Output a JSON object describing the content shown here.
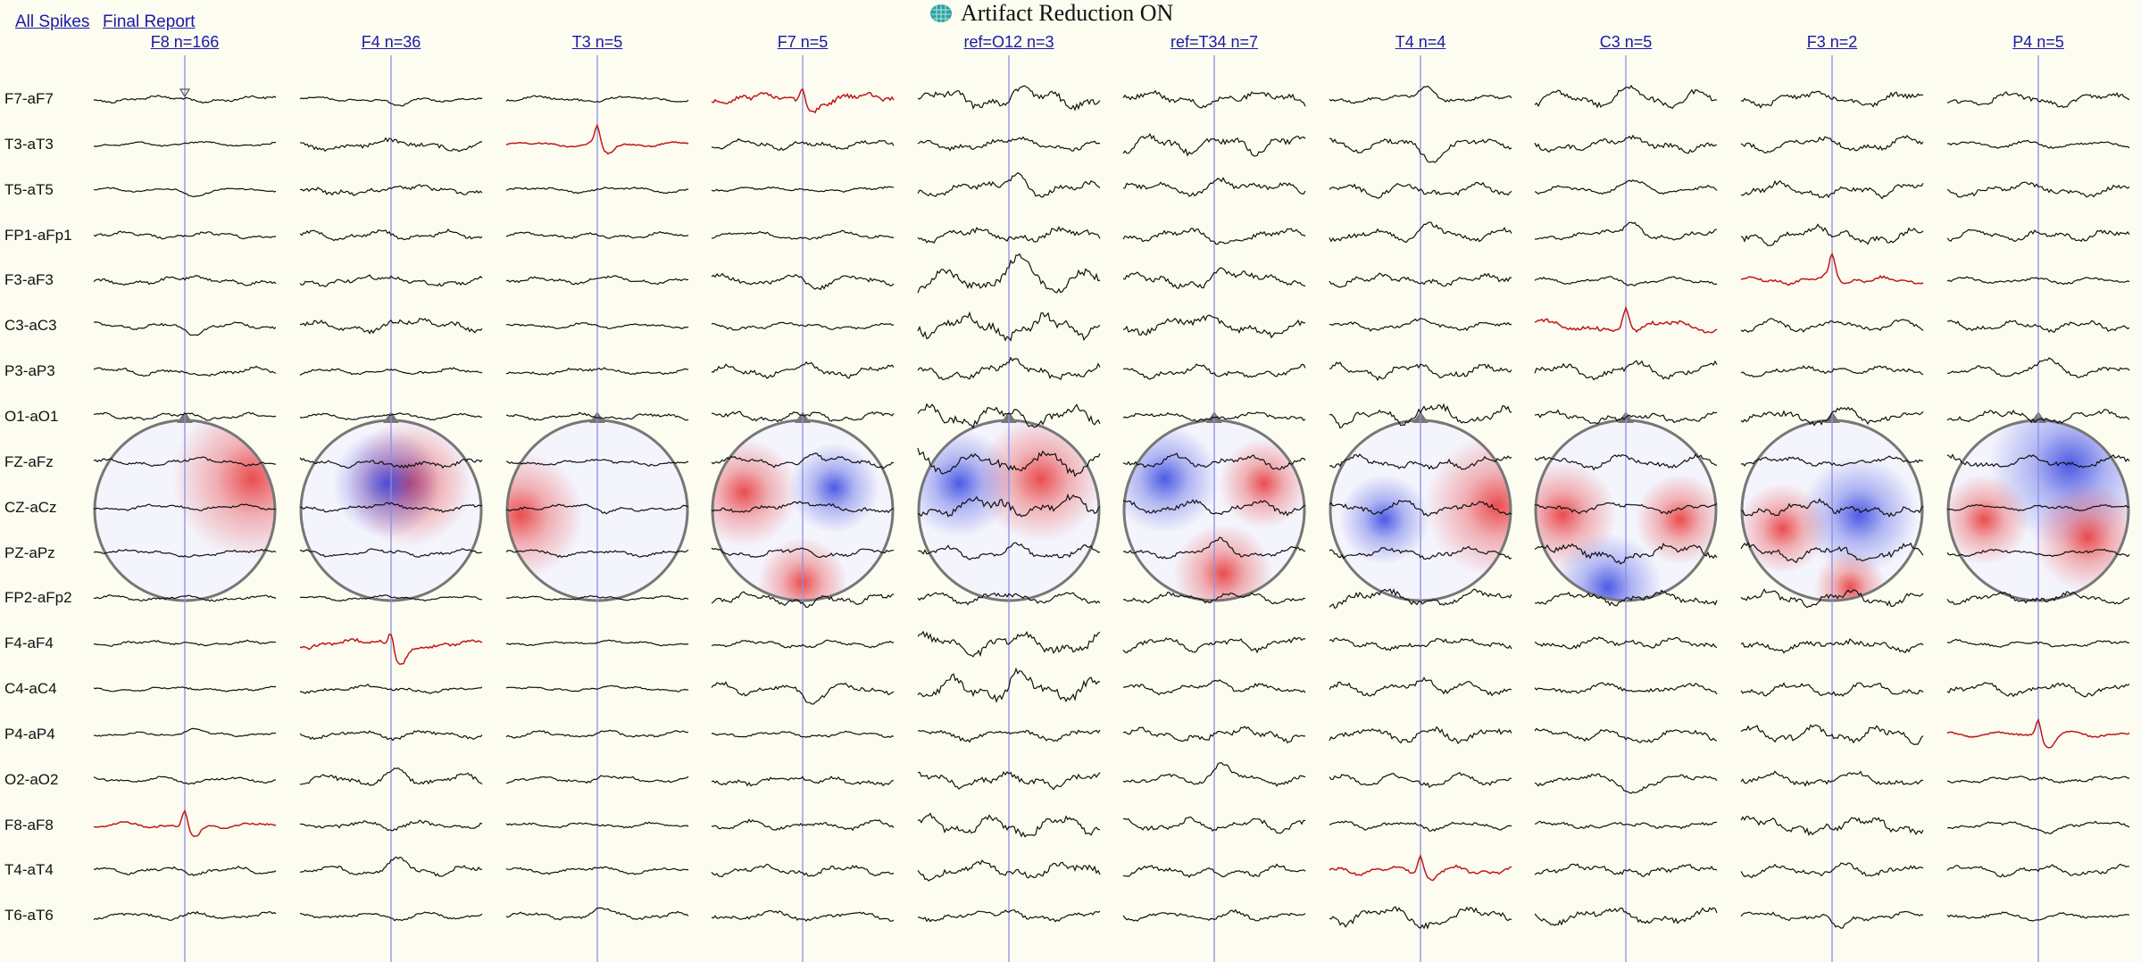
{
  "links": {
    "all_spikes": "All Spikes",
    "final_report": "Final Report"
  },
  "title": {
    "text": "Artifact Reduction ON",
    "icon": "brain-mesh-icon"
  },
  "columns": [
    {
      "label": "F8 n=166"
    },
    {
      "label": "F4 n=36"
    },
    {
      "label": "T3 n=5"
    },
    {
      "label": "F7 n=5"
    },
    {
      "label": "ref=O12 n=3"
    },
    {
      "label": "ref=T34 n=7"
    },
    {
      "label": "T4 n=4"
    },
    {
      "label": "C3 n=5"
    },
    {
      "label": "F3 n=2"
    },
    {
      "label": "P4 n=5"
    }
  ],
  "channels": [
    "F7-aF7",
    "T3-aT3",
    "T5-aT5",
    "FP1-aFp1",
    "F3-aF3",
    "C3-aC3",
    "P3-aP3",
    "O1-aO1",
    "FZ-aFz",
    "CZ-aCz",
    "PZ-aPz",
    "FP2-aFp2",
    "F4-aF4",
    "C4-aC4",
    "P4-aP4",
    "O2-aO2",
    "F8-aF8",
    "T4-aT4",
    "T6-aT6"
  ],
  "highlighted": [
    {
      "column": 0,
      "channel": "F8-aF8"
    },
    {
      "column": 1,
      "channel": "F4-aF4"
    },
    {
      "column": 2,
      "channel": "T3-aT3"
    },
    {
      "column": 3,
      "channel": "F7-aF7"
    },
    {
      "column": 6,
      "channel": "T4-aT4"
    },
    {
      "column": 7,
      "channel": "C3-aC3"
    },
    {
      "column": 8,
      "channel": "F3-aF3"
    },
    {
      "column": 9,
      "channel": "P4-aP4"
    }
  ],
  "colors": {
    "background": "#fcfcf0",
    "trace": "#111111",
    "spike_trace": "#c01818",
    "marker_line": "#8c8ce6",
    "link": "#1a1aa8",
    "topo_positive": "#e83030",
    "topo_negative": "#3040e0"
  }
}
